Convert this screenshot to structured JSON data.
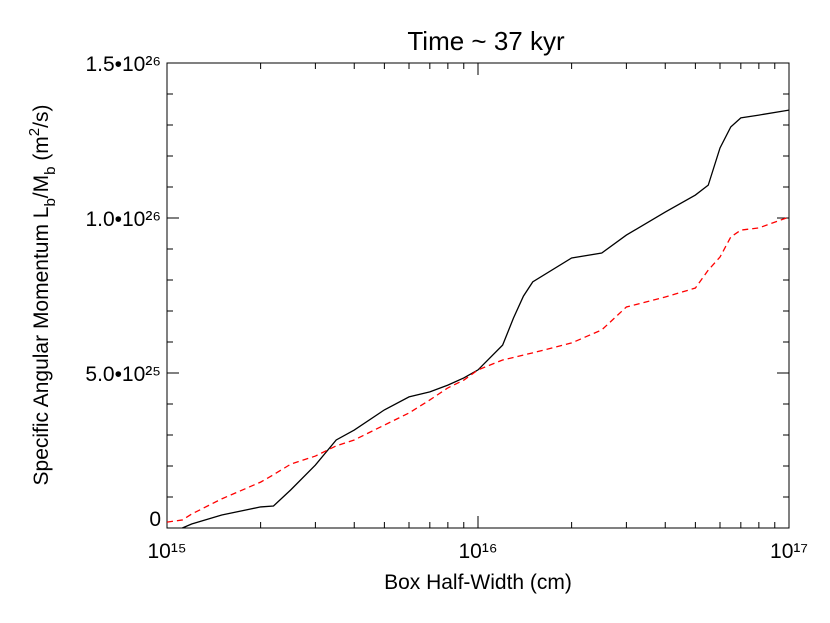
{
  "chart_data": {
    "type": "line",
    "title": "Time ~ 37 kyr",
    "xlabel": "Box Half-Width (cm)",
    "ylabel_parts": [
      "Specific Angular Momentum L",
      "b",
      "/M",
      "b",
      " (m",
      "2",
      "/s)"
    ],
    "xscale": "log",
    "xlim": [
      1000000000000000.0,
      1e+17
    ],
    "xticks": [
      {
        "value": 1000000000000000.0,
        "label": "10¹⁵"
      },
      {
        "value": 1e+16,
        "label": "10¹⁶"
      },
      {
        "value": 1e+17,
        "label": "10¹⁷"
      }
    ],
    "xminor_ticks": [
      2000000000000000.0,
      3000000000000000.0,
      4000000000000000.0,
      5000000000000000.0,
      6000000000000000.0,
      7000000000000000.0,
      8000000000000000.0,
      9000000000000000.0,
      2e+16,
      3e+16,
      4e+16,
      5e+16,
      6e+16,
      7e+16,
      8e+16,
      9e+16
    ],
    "ylim": [
      0,
      1.5e+26
    ],
    "yticks": [
      0,
      {
        "value": 5e+25,
        "label": "5.0•10²⁵"
      },
      {
        "value": 1e+26,
        "label": "1.0•10²⁶"
      },
      {
        "value": 1.5e+26,
        "label": "1.5•10²⁶"
      }
    ],
    "yminor_ticks": [
      1e+25,
      2e+25,
      3e+25,
      4e+25,
      6e+25,
      7e+25,
      8e+25,
      9e+25,
      1.1e+26,
      1.2e+26,
      1.3e+26,
      1.4e+26
    ],
    "x": [
      1000000000000000.0,
      1120000000000000.0,
      1200000000000000.0,
      1500000000000000.0,
      2000000000000000.0,
      2200000000000000.0,
      2500000000000000.0,
      3000000000000000.0,
      3500000000000000.0,
      4000000000000000.0,
      5000000000000000.0,
      6000000000000000.0,
      7000000000000000.0,
      8000000000000000.0,
      9000000000000000.0,
      1e+16,
      1.2e+16,
      1.3e+16,
      1.4e+16,
      1.5e+16,
      2e+16,
      2.5e+16,
      3e+16,
      4e+16,
      5e+16,
      5.5e+16,
      6e+16,
      6.5e+16,
      7e+16,
      8e+16,
      1e+17
    ],
    "series": [
      {
        "color": "#000000",
        "dash": "none",
        "values": [
          null,
          0,
          1.3e+24,
          4.2e+24,
          6.8e+24,
          7.1e+24,
          1.23e+25,
          2.03e+25,
          2.84e+25,
          3.16e+25,
          3.81e+25,
          4.23e+25,
          4.39e+25,
          4.61e+25,
          4.84e+25,
          5.1e+25,
          5.9e+25,
          6.77e+25,
          7.48e+25,
          7.94e+25,
          8.71e+25,
          8.87e+25,
          9.45e+25,
          1.019e+26,
          1.074e+26,
          1.106e+26,
          1.226e+26,
          1.294e+26,
          1.323e+26,
          1.332e+26,
          1.348e+26
        ]
      },
      {
        "color": "#ff0000",
        "dash": "6,4",
        "values": [
          1.9e+24,
          2.6e+24,
          4.5e+24,
          9.4e+24,
          1.48e+25,
          1.72e+25,
          2.06e+25,
          2.32e+25,
          2.65e+25,
          2.84e+25,
          3.32e+25,
          3.71e+25,
          4.13e+25,
          4.52e+25,
          4.77e+25,
          5.1e+25,
          5.42e+25,
          5.5e+25,
          5.58e+25,
          5.65e+25,
          5.97e+25,
          6.39e+25,
          7.13e+25,
          7.45e+25,
          7.74e+25,
          8.32e+25,
          8.74e+25,
          9.39e+25,
          9.61e+25,
          9.68e+25,
          1.003e+26
        ]
      }
    ]
  }
}
